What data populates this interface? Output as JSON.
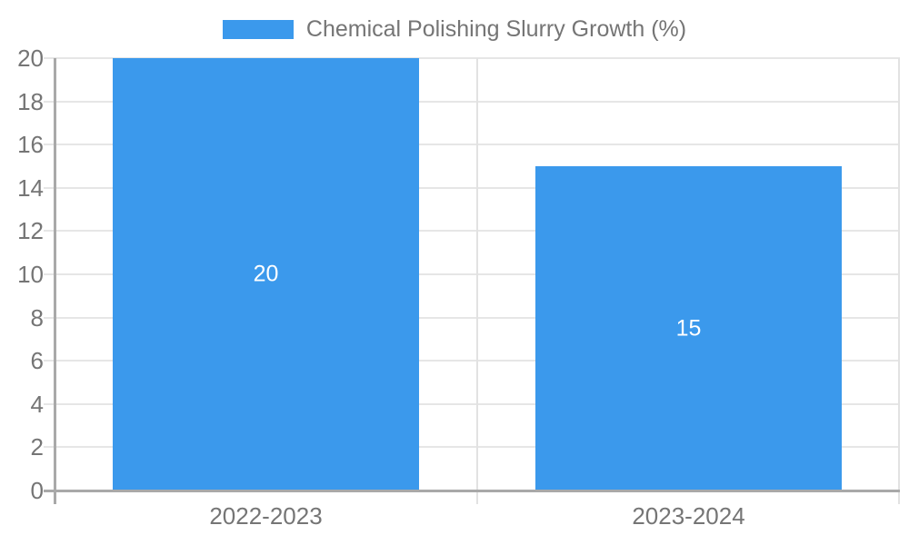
{
  "legend": {
    "label": "Chemical Polishing Slurry Growth (%)"
  },
  "chart_data": {
    "type": "bar",
    "title": "",
    "series_name": "Chemical Polishing Slurry Growth (%)",
    "categories": [
      "2022-2023",
      "2023-2024"
    ],
    "values": [
      20,
      15
    ],
    "value_labels": [
      "20",
      "15"
    ],
    "xlabel": "",
    "ylabel": "",
    "ylim": [
      0,
      20
    ],
    "ytick_step": 2,
    "grid": true,
    "legend_position": "top"
  },
  "colors": {
    "bar": "#3b99ec",
    "axis_text": "#757575",
    "gridline": "#e6e6e6",
    "axis_line": "#a9a9a9",
    "separator": "#e2e2e2",
    "bar_label": "#ffffff",
    "background": "#ffffff"
  }
}
